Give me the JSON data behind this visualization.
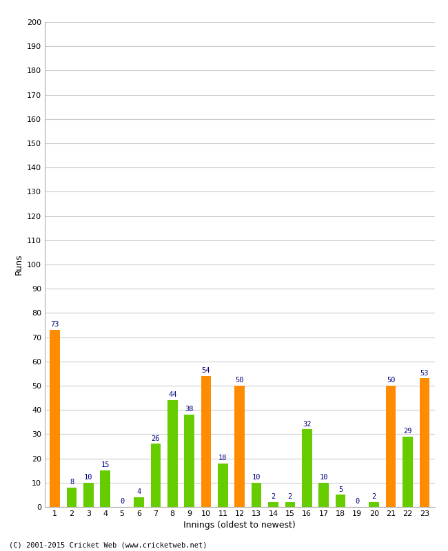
{
  "xlabel": "Innings (oldest to newest)",
  "ylabel": "Runs",
  "innings": [
    1,
    2,
    3,
    4,
    5,
    6,
    7,
    8,
    9,
    10,
    11,
    12,
    13,
    14,
    15,
    16,
    17,
    18,
    19,
    20,
    21,
    22,
    23
  ],
  "values": [
    73,
    8,
    10,
    15,
    0,
    4,
    26,
    44,
    38,
    54,
    18,
    50,
    10,
    2,
    2,
    32,
    10,
    5,
    0,
    2,
    50,
    29,
    53
  ],
  "colors": [
    "#ff8c00",
    "#66cc00",
    "#66cc00",
    "#66cc00",
    "#ff8c00",
    "#66cc00",
    "#66cc00",
    "#66cc00",
    "#66cc00",
    "#ff8c00",
    "#66cc00",
    "#ff8c00",
    "#66cc00",
    "#66cc00",
    "#66cc00",
    "#66cc00",
    "#66cc00",
    "#66cc00",
    "#66cc00",
    "#66cc00",
    "#ff8c00",
    "#66cc00",
    "#ff8c00"
  ],
  "ylim": [
    0,
    200
  ],
  "yticks": [
    0,
    10,
    20,
    30,
    40,
    50,
    60,
    70,
    80,
    90,
    100,
    110,
    120,
    130,
    140,
    150,
    160,
    170,
    180,
    190,
    200
  ],
  "label_color": "#000080",
  "grid_color": "#cccccc",
  "bg_color": "#ffffff",
  "footer": "(C) 2001-2015 Cricket Web (www.cricketweb.net)",
  "axis_label_fontsize": 9,
  "tick_fontsize": 8,
  "bar_label_fontsize": 7.5
}
